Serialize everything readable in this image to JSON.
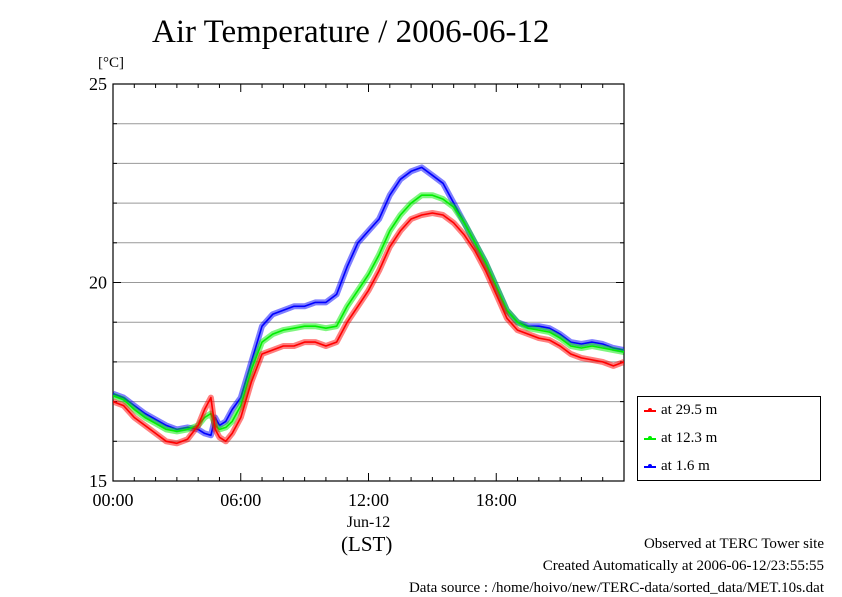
{
  "header": {
    "title": "Air Temperature / 2006-06-12",
    "unit": "[°C]"
  },
  "chart_data": {
    "type": "line",
    "title": "Air Temperature / 2006-06-12",
    "ylabel": "[°C]",
    "xlabel": "(LST)",
    "date_label": "Jun-12",
    "xlim": [
      0,
      24
    ],
    "ylim": [
      15,
      25
    ],
    "x_ticks": [
      {
        "value": 0,
        "label": "00:00"
      },
      {
        "value": 6,
        "label": "06:00"
      },
      {
        "value": 12,
        "label": "12:00"
      },
      {
        "value": 18,
        "label": "18:00"
      }
    ],
    "y_ticks": [
      {
        "value": 15,
        "label": "15"
      },
      {
        "value": 20,
        "label": "20"
      },
      {
        "value": 25,
        "label": "25"
      }
    ],
    "y_gridlines": [
      16,
      17,
      18,
      19,
      21,
      22,
      23,
      24
    ],
    "grid": true,
    "legend_position": "bottom-right outside",
    "x": [
      0,
      0.5,
      1,
      1.5,
      2,
      2.5,
      3,
      3.5,
      4,
      4.3,
      4.6,
      4.8,
      5,
      5.3,
      5.6,
      6,
      6.5,
      7,
      7.5,
      8,
      8.5,
      9,
      9.5,
      10,
      10.5,
      11,
      11.5,
      12,
      12.5,
      13,
      13.5,
      14,
      14.5,
      15,
      15.5,
      16,
      16.5,
      17,
      17.5,
      18,
      18.5,
      19,
      19.5,
      20,
      20.5,
      21,
      21.5,
      22,
      22.5,
      23,
      23.5,
      24
    ],
    "series": [
      {
        "name": "at 29.5 m",
        "color": "#ff0000",
        "values": [
          17.0,
          16.9,
          16.6,
          16.4,
          16.2,
          16.0,
          15.95,
          16.05,
          16.4,
          16.8,
          17.1,
          16.3,
          16.1,
          16.0,
          16.2,
          16.6,
          17.5,
          18.2,
          18.3,
          18.4,
          18.4,
          18.5,
          18.5,
          18.4,
          18.5,
          19.0,
          19.4,
          19.8,
          20.3,
          20.9,
          21.3,
          21.6,
          21.7,
          21.75,
          21.7,
          21.5,
          21.2,
          20.8,
          20.3,
          19.7,
          19.1,
          18.8,
          18.7,
          18.6,
          18.55,
          18.4,
          18.2,
          18.1,
          18.05,
          18.0,
          17.9,
          18.0
        ]
      },
      {
        "name": "at 12.3 m",
        "color": "#00ee00",
        "values": [
          17.15,
          17.05,
          16.8,
          16.6,
          16.45,
          16.3,
          16.25,
          16.3,
          16.4,
          16.6,
          16.7,
          16.4,
          16.3,
          16.35,
          16.5,
          16.9,
          17.8,
          18.5,
          18.7,
          18.8,
          18.85,
          18.9,
          18.9,
          18.85,
          18.9,
          19.4,
          19.8,
          20.2,
          20.7,
          21.3,
          21.7,
          22.0,
          22.2,
          22.2,
          22.1,
          21.9,
          21.5,
          21.0,
          20.5,
          19.9,
          19.3,
          19.0,
          18.85,
          18.8,
          18.75,
          18.6,
          18.4,
          18.35,
          18.4,
          18.35,
          18.3,
          18.25
        ]
      },
      {
        "name": "at 1.6 m",
        "color": "#0000ff",
        "values": [
          17.2,
          17.1,
          16.9,
          16.7,
          16.55,
          16.4,
          16.3,
          16.35,
          16.3,
          16.2,
          16.15,
          16.6,
          16.4,
          16.5,
          16.8,
          17.1,
          18.0,
          18.9,
          19.2,
          19.3,
          19.4,
          19.4,
          19.5,
          19.5,
          19.7,
          20.4,
          21.0,
          21.3,
          21.6,
          22.2,
          22.6,
          22.8,
          22.9,
          22.7,
          22.5,
          22.0,
          21.5,
          21.0,
          20.5,
          19.9,
          19.3,
          19.0,
          18.9,
          18.9,
          18.85,
          18.7,
          18.5,
          18.45,
          18.5,
          18.45,
          18.35,
          18.3
        ]
      }
    ]
  },
  "footer": {
    "line1": "Observed at TERC Tower site",
    "line2": "Created Automatically at 2006-06-12/23:55:55",
    "line3": "Data source : /home/hoivo/new/TERC-data/sorted_data/MET.10s.dat"
  }
}
